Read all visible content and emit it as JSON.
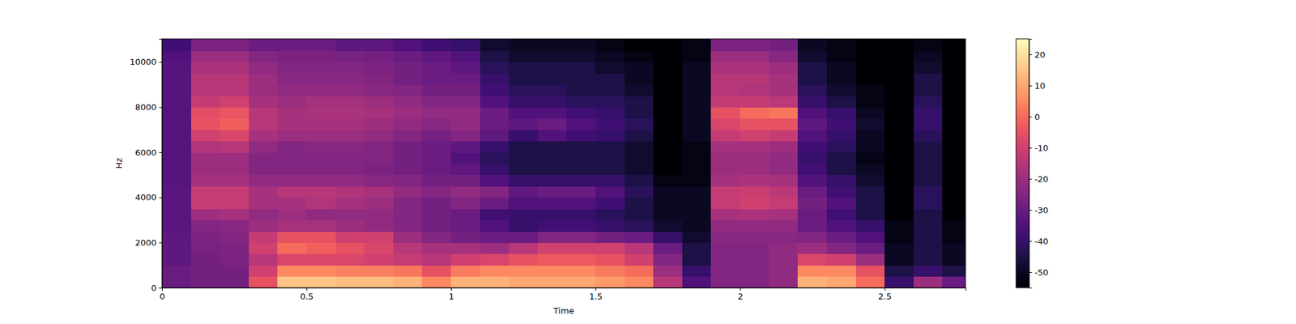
{
  "chart_data": {
    "type": "heatmap",
    "x_label": "Time",
    "y_label": "Hz",
    "color": "magma",
    "x_bins": [
      0,
      0.1,
      0.2,
      0.3,
      0.4,
      0.5,
      0.6,
      0.7,
      0.8,
      0.9,
      1.0,
      1.1,
      1.2,
      1.3,
      1.4,
      1.5,
      1.6,
      1.7,
      1.8,
      1.9,
      2.0,
      2.1,
      2.2,
      2.3,
      2.4,
      2.5,
      2.6,
      2.7,
      2.8
    ],
    "y_bins": [
      0,
      500,
      1000,
      1500,
      2000,
      2500,
      3000,
      3500,
      4000,
      4500,
      5000,
      5500,
      6000,
      6500,
      7000,
      7500,
      8000,
      8500,
      9000,
      9500,
      10000,
      10500,
      11025
    ],
    "z": [
      [
        -30,
        -28,
        -28,
        -5,
        15,
        15,
        14,
        14,
        12,
        5,
        12,
        12,
        10,
        10,
        10,
        8,
        5,
        -15,
        -35,
        -25,
        -25,
        -22,
        12,
        10,
        0,
        -40,
        -20,
        -30
      ],
      [
        -30,
        -28,
        -28,
        -10,
        5,
        5,
        4,
        4,
        2,
        -5,
        3,
        5,
        5,
        5,
        5,
        3,
        0,
        -20,
        -40,
        -25,
        -25,
        -22,
        5,
        5,
        -5,
        -45,
        -40,
        -45
      ],
      [
        -32,
        -28,
        -26,
        -15,
        -8,
        -8,
        -8,
        -10,
        -12,
        -15,
        -10,
        -8,
        -5,
        -3,
        -3,
        -5,
        -10,
        -25,
        -45,
        -25,
        -25,
        -22,
        -8,
        -10,
        -20,
        -50,
        -45,
        -50
      ],
      [
        -32,
        -27,
        -26,
        -10,
        0,
        -2,
        -5,
        -8,
        -15,
        -18,
        -18,
        -20,
        -15,
        -10,
        -10,
        -10,
        -15,
        -30,
        -45,
        -25,
        -25,
        -22,
        -20,
        -25,
        -30,
        -50,
        -45,
        -50
      ],
      [
        -32,
        -26,
        -25,
        -12,
        -5,
        -5,
        -10,
        -10,
        -20,
        -25,
        -28,
        -30,
        -30,
        -25,
        -25,
        -28,
        -30,
        -40,
        -48,
        -24,
        -24,
        -24,
        -25,
        -30,
        -35,
        -52,
        -45,
        -52
      ],
      [
        -33,
        -25,
        -24,
        -20,
        -18,
        -18,
        -20,
        -22,
        -25,
        -28,
        -30,
        -35,
        -40,
        -38,
        -38,
        -40,
        -42,
        -48,
        -50,
        -22,
        -22,
        -22,
        -30,
        -35,
        -40,
        -52,
        -45,
        -52
      ],
      [
        -33,
        -20,
        -18,
        -22,
        -20,
        -22,
        -22,
        -22,
        -25,
        -28,
        -30,
        -38,
        -40,
        -40,
        -40,
        -42,
        -45,
        -50,
        -50,
        -18,
        -17,
        -18,
        -30,
        -38,
        -45,
        -55,
        -45,
        -55
      ],
      [
        -33,
        -12,
        -12,
        -18,
        -18,
        -16,
        -18,
        -20,
        -25,
        -28,
        -25,
        -30,
        -35,
        -35,
        -35,
        -38,
        -45,
        -50,
        -50,
        -12,
        -10,
        -12,
        -28,
        -35,
        -45,
        -55,
        -42,
        -55
      ],
      [
        -33,
        -12,
        -12,
        -18,
        -15,
        -15,
        -16,
        -18,
        -22,
        -25,
        -22,
        -25,
        -32,
        -30,
        -30,
        -35,
        -42,
        -50,
        -50,
        -12,
        -11,
        -14,
        -30,
        -38,
        -45,
        -55,
        -42,
        -55
      ],
      [
        -34,
        -18,
        -18,
        -22,
        -22,
        -22,
        -22,
        -24,
        -25,
        -28,
        -28,
        -35,
        -40,
        -40,
        -40,
        -40,
        -45,
        -52,
        -52,
        -18,
        -17,
        -18,
        -35,
        -40,
        -48,
        -55,
        -45,
        -55
      ],
      [
        -34,
        -20,
        -20,
        -25,
        -25,
        -25,
        -25,
        -26,
        -28,
        -30,
        -32,
        -40,
        -45,
        -45,
        -45,
        -45,
        -48,
        -55,
        -52,
        -20,
        -20,
        -22,
        -38,
        -45,
        -50,
        -55,
        -45,
        -55
      ],
      [
        -34,
        -20,
        -20,
        -25,
        -25,
        -25,
        -25,
        -25,
        -28,
        -30,
        -35,
        -42,
        -45,
        -45,
        -45,
        -45,
        -48,
        -55,
        -52,
        -20,
        -20,
        -22,
        -40,
        -45,
        -52,
        -55,
        -45,
        -55
      ],
      [
        -34,
        -16,
        -15,
        -22,
        -25,
        -24,
        -24,
        -25,
        -28,
        -30,
        -32,
        -40,
        -45,
        -45,
        -45,
        -45,
        -48,
        -55,
        -52,
        -18,
        -18,
        -20,
        -38,
        -42,
        -50,
        -55,
        -45,
        -55
      ],
      [
        -34,
        -10,
        -8,
        -18,
        -20,
        -20,
        -20,
        -22,
        -25,
        -28,
        -25,
        -32,
        -40,
        -35,
        -38,
        -40,
        -45,
        -55,
        -50,
        -12,
        -10,
        -12,
        -35,
        -40,
        -50,
        -55,
        -42,
        -55
      ],
      [
        -34,
        -5,
        -2,
        -15,
        -18,
        -18,
        -18,
        -20,
        -22,
        -24,
        -22,
        -30,
        -32,
        -30,
        -35,
        -38,
        -42,
        -55,
        -50,
        -8,
        -5,
        -5,
        -32,
        -38,
        -48,
        -55,
        -40,
        -55
      ],
      [
        -34,
        -6,
        -4,
        -15,
        -18,
        -17,
        -17,
        -18,
        -20,
        -22,
        -22,
        -30,
        -35,
        -35,
        -38,
        -40,
        -45,
        -55,
        -50,
        -5,
        0,
        2,
        -35,
        -40,
        -50,
        -55,
        -40,
        -55
      ],
      [
        -34,
        -12,
        -10,
        -18,
        -20,
        -18,
        -18,
        -20,
        -22,
        -25,
        -25,
        -35,
        -40,
        -40,
        -42,
        -42,
        -45,
        -55,
        -50,
        -12,
        -12,
        -14,
        -40,
        -45,
        -52,
        -55,
        -42,
        -55
      ],
      [
        -34,
        -15,
        -15,
        -20,
        -22,
        -22,
        -22,
        -24,
        -25,
        -28,
        -28,
        -38,
        -42,
        -42,
        -45,
        -45,
        -48,
        -55,
        -50,
        -15,
        -16,
        -18,
        -42,
        -48,
        -52,
        -55,
        -45,
        -55
      ],
      [
        -34,
        -15,
        -15,
        -20,
        -24,
        -24,
        -24,
        -25,
        -28,
        -30,
        -30,
        -40,
        -45,
        -45,
        -45,
        -45,
        -50,
        -55,
        -50,
        -15,
        -15,
        -18,
        -45,
        -50,
        -55,
        -55,
        -45,
        -55
      ],
      [
        -34,
        -17,
        -17,
        -22,
        -25,
        -25,
        -25,
        -26,
        -28,
        -30,
        -32,
        -42,
        -45,
        -45,
        -45,
        -48,
        -50,
        -55,
        -50,
        -17,
        -17,
        -20,
        -45,
        -50,
        -55,
        -55,
        -48,
        -55
      ],
      [
        -35,
        -20,
        -20,
        -25,
        -26,
        -26,
        -27,
        -28,
        -30,
        -32,
        -35,
        -45,
        -48,
        -48,
        -48,
        -50,
        -52,
        -55,
        -52,
        -20,
        -20,
        -24,
        -48,
        -52,
        -55,
        -55,
        -50,
        -55
      ],
      [
        -38,
        -26,
        -26,
        -30,
        -30,
        -30,
        -32,
        -32,
        -35,
        -38,
        -40,
        -48,
        -50,
        -50,
        -50,
        -52,
        -55,
        -55,
        -52,
        -26,
        -26,
        -28,
        -50,
        -52,
        -55,
        -55,
        -52,
        -55
      ]
    ],
    "xlim": [
      0,
      2.78
    ],
    "ylim": [
      0,
      11025
    ],
    "xticks": [
      0,
      0.5,
      1,
      1.5,
      2,
      2.5
    ],
    "yticks": [
      0,
      2000,
      4000,
      6000,
      8000,
      10000
    ],
    "colorbar_range": [
      -55,
      25
    ],
    "colorbar_ticks": [
      -50,
      -40,
      -30,
      -20,
      -10,
      0,
      10,
      20
    ]
  }
}
